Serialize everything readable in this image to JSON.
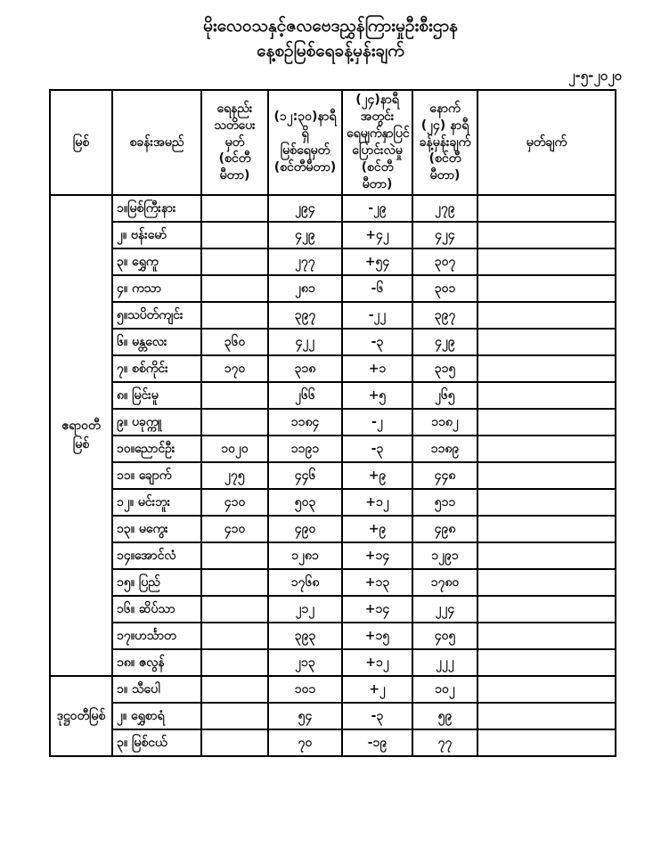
{
  "page": {
    "title_line1": "မိုးလေဝသနှင့်ဇလဗေဒညွှန်ကြားမှုဦးစီးဌာန",
    "title_line2": "နေ့စဉ်မြစ်ရေခန့်မှန်းချက်",
    "date": "၂-၅-၂၀၂၀"
  },
  "table": {
    "headers": {
      "river": "မြစ်",
      "station": "စခန်းအမည်",
      "warning": "ရေနည်း\nသတိပေးမှတ်\n(စင်တီမီတာ)",
      "level": "(၁၂:၃၀)နာရီရှိ\nမြစ်ရေမှတ်\n(စင်တီမီတာ)",
      "change": "(၂၄)နာရီအတွင်း\nရေမျက်နှာပြင်\nပြောင်းလဲမှု\n(စင်တီမီတာ)",
      "forecast": "နောက်\n(၂၄) နာရီ\nခန့်မှန်းချက်\n(စင်တီမီတာ)",
      "remark": "မှတ်ချက်"
    },
    "groups": [
      {
        "river": "ဧရာဝတီမြစ်",
        "rows": [
          {
            "station": "၁။မြစ်ကြီးနား",
            "warning": "",
            "level": "၂၉၄",
            "change": "-၂၉",
            "forecast": "၂၇၉",
            "remark": ""
          },
          {
            "station": "၂။ ဗန်းမော်",
            "warning": "",
            "level": "၄၂၉",
            "change": "+၄၂",
            "forecast": "၄၂၄",
            "remark": ""
          },
          {
            "station": "၃။ ရွှေကူ",
            "warning": "",
            "level": "၂၇၇",
            "change": "+၅၄",
            "forecast": "၃၀၇",
            "remark": ""
          },
          {
            "station": "၄။ ကသာ",
            "warning": "",
            "level": "၂၈၁",
            "change": "-၆",
            "forecast": "၃၀၁",
            "remark": ""
          },
          {
            "station": "၅။သပိတ်ကျင်း",
            "warning": "",
            "level": "၃၉၇",
            "change": "-၂၂",
            "forecast": "၃၉၇",
            "remark": ""
          },
          {
            "station": "၆။ မန္တလေး",
            "warning": "၃၆၀",
            "level": "၄၂၂",
            "change": "-၃",
            "forecast": "၄၂၉",
            "remark": ""
          },
          {
            "station": "၇။ စစ်ကိုင်း",
            "warning": "၁၇၀",
            "level": "၃၁၈",
            "change": "+၁",
            "forecast": "၃၁၅",
            "remark": ""
          },
          {
            "station": "၈။ မြင်းမူ",
            "warning": "",
            "level": "၂၆၆",
            "change": "+၅",
            "forecast": "၂၆၅",
            "remark": ""
          },
          {
            "station": "၉။ ပခုက္ကူ",
            "warning": "",
            "level": "၁၁၈၄",
            "change": "-၂",
            "forecast": "၁၁၈၂",
            "remark": ""
          },
          {
            "station": "၁၀။ညောင်ဦး",
            "warning": "၁၀၂၀",
            "level": "၁၁၉၁",
            "change": "-၃",
            "forecast": "၁၁၈၉",
            "remark": ""
          },
          {
            "station": "၁၁။ ချောက်",
            "warning": "၂၇၅",
            "level": "၄၄၆",
            "change": "+၉",
            "forecast": "၄၄၈",
            "remark": ""
          },
          {
            "station": "၁၂။ မင်းဘူး",
            "warning": "၄၁၀",
            "level": "၅၀၃",
            "change": "+၁၂",
            "forecast": "၅၁၁",
            "remark": ""
          },
          {
            "station": "၁၃။ မကွေး",
            "warning": "၄၁၀",
            "level": "၄၉၀",
            "change": "+၉",
            "forecast": "၄၉၈",
            "remark": ""
          },
          {
            "station": "၁၄။အောင်လံ",
            "warning": "",
            "level": "၁၂၈၁",
            "change": "+၁၄",
            "forecast": "၁၂၉၁",
            "remark": ""
          },
          {
            "station": "၁၅။ ပြည်",
            "warning": "",
            "level": "၁၇၆၈",
            "change": "+၁၃",
            "forecast": "၁၇၈၀",
            "remark": ""
          },
          {
            "station": "၁၆။ ဆိပ်သာ",
            "warning": "",
            "level": "၂၁၂",
            "change": "+၁၄",
            "forecast": "၂၂၄",
            "remark": ""
          },
          {
            "station": "၁၇။ဟင်္သာတ",
            "warning": "",
            "level": "၃၉၃",
            "change": "+၁၅",
            "forecast": "၄၀၅",
            "remark": ""
          },
          {
            "station": "၁၈။ ဇလွန်",
            "warning": "",
            "level": "၂၁၃",
            "change": "+၁၂",
            "forecast": "၂၂၂",
            "remark": ""
          }
        ]
      },
      {
        "river": "ဒုဋ္ဌဝတီမြစ်",
        "rows": [
          {
            "station": "၁။ သီပေါ",
            "warning": "",
            "level": "၁၀၁",
            "change": "+၂",
            "forecast": "၁၀၂",
            "remark": ""
          },
          {
            "station": "၂။ ရွှေစာရံ",
            "warning": "",
            "level": "၅၄",
            "change": "-၃",
            "forecast": "၅၉",
            "remark": ""
          },
          {
            "station": "၃။ မြစ်ငယ်",
            "warning": "",
            "level": "၇၀",
            "change": "-၁၉",
            "forecast": "၇၇",
            "remark": ""
          }
        ]
      }
    ]
  }
}
